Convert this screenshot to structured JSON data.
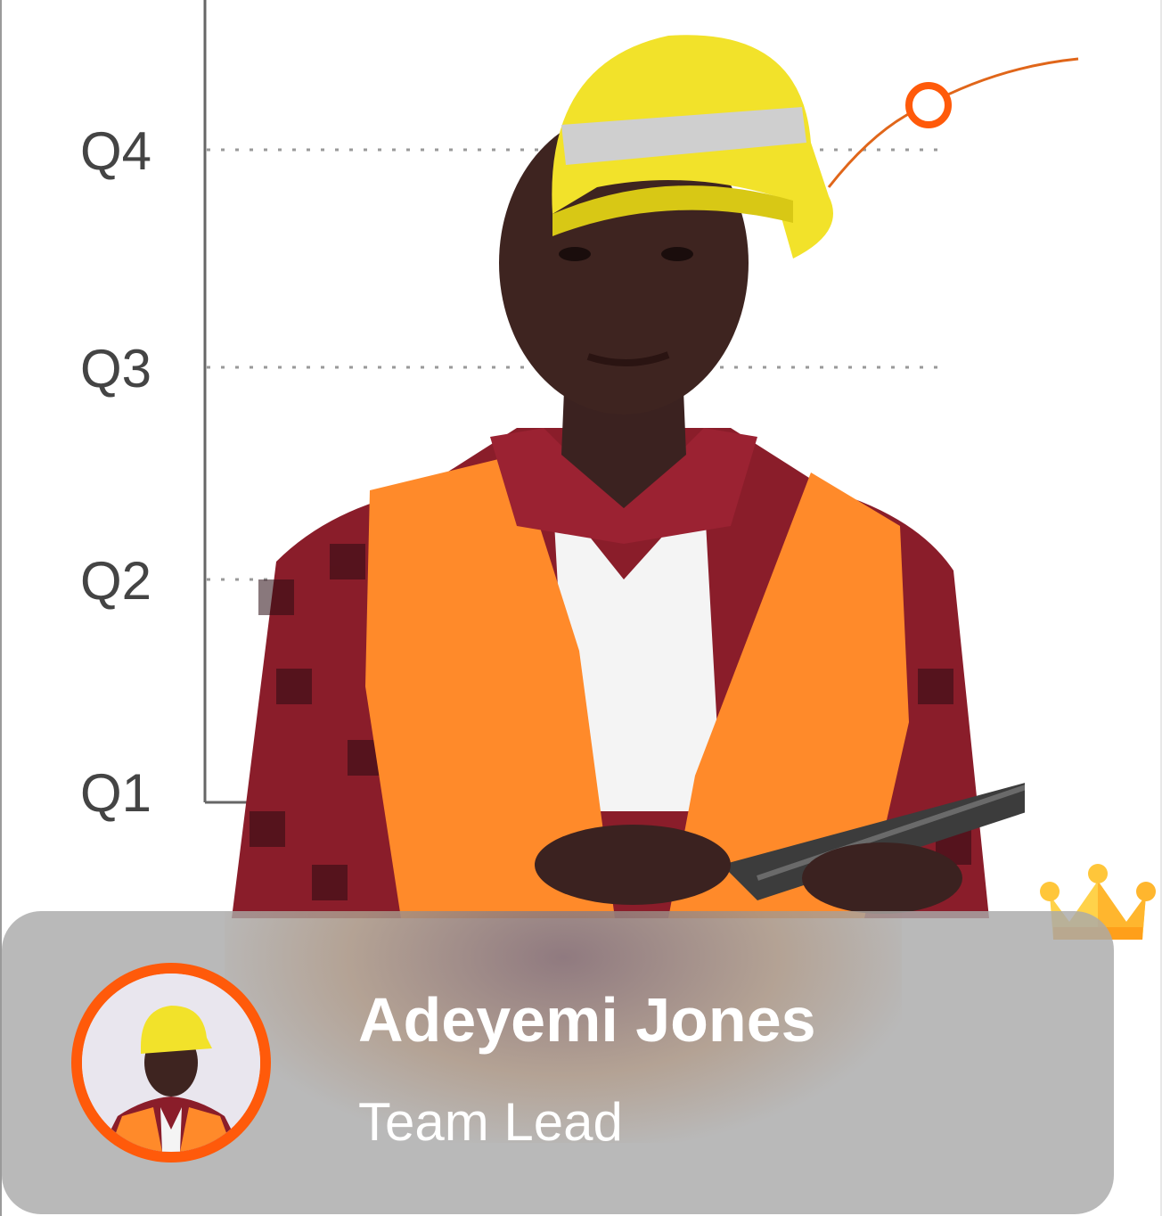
{
  "chart_data": {
    "type": "line",
    "y_categories": [
      "Q1",
      "Q2",
      "Q3",
      "Q4"
    ],
    "grid": "dotted-horizontal",
    "line_color": "#e0661a"
  },
  "profile": {
    "name": "Adeyemi Jones",
    "role": "Team Lead",
    "accent_color": "#ff5a0a"
  },
  "icons": {
    "badge": "crown-icon"
  }
}
